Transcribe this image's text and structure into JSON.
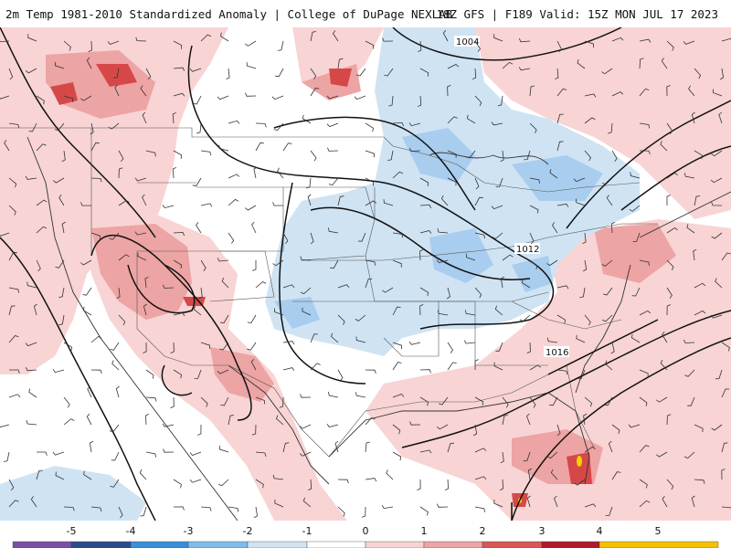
{
  "header": {
    "title_left": "2m Temp 1981-2010 Standardized Anomaly | College of DuPage NEXLAB",
    "title_right": "18Z GFS | F189 Valid: 15Z MON JUL 17 2023"
  },
  "isobars": {
    "labels": [
      "1004",
      "1012",
      "1016"
    ]
  },
  "legend": {
    "tick_labels": [
      "-5",
      "-4",
      "-3",
      "-2",
      "-1",
      "0",
      "1",
      "2",
      "3",
      "4",
      "5"
    ],
    "colors": [
      "#7a4fa6",
      "#2b4c8c",
      "#3a8fd6",
      "#7fbde8",
      "#cfe3f3",
      "#ffffff",
      "#f7d3d3",
      "#eda4a4",
      "#d85858",
      "#b01c2a",
      "#f5c200"
    ]
  },
  "map_colors": {
    "land_base": "#ffffff",
    "warm_light": "#f8d4d4",
    "warm_mid": "#eda4a4",
    "warm_strong": "#d64848",
    "cool_light": "#cfe3f3",
    "cool_mid": "#a9cdee",
    "extreme": "#f5d400"
  }
}
